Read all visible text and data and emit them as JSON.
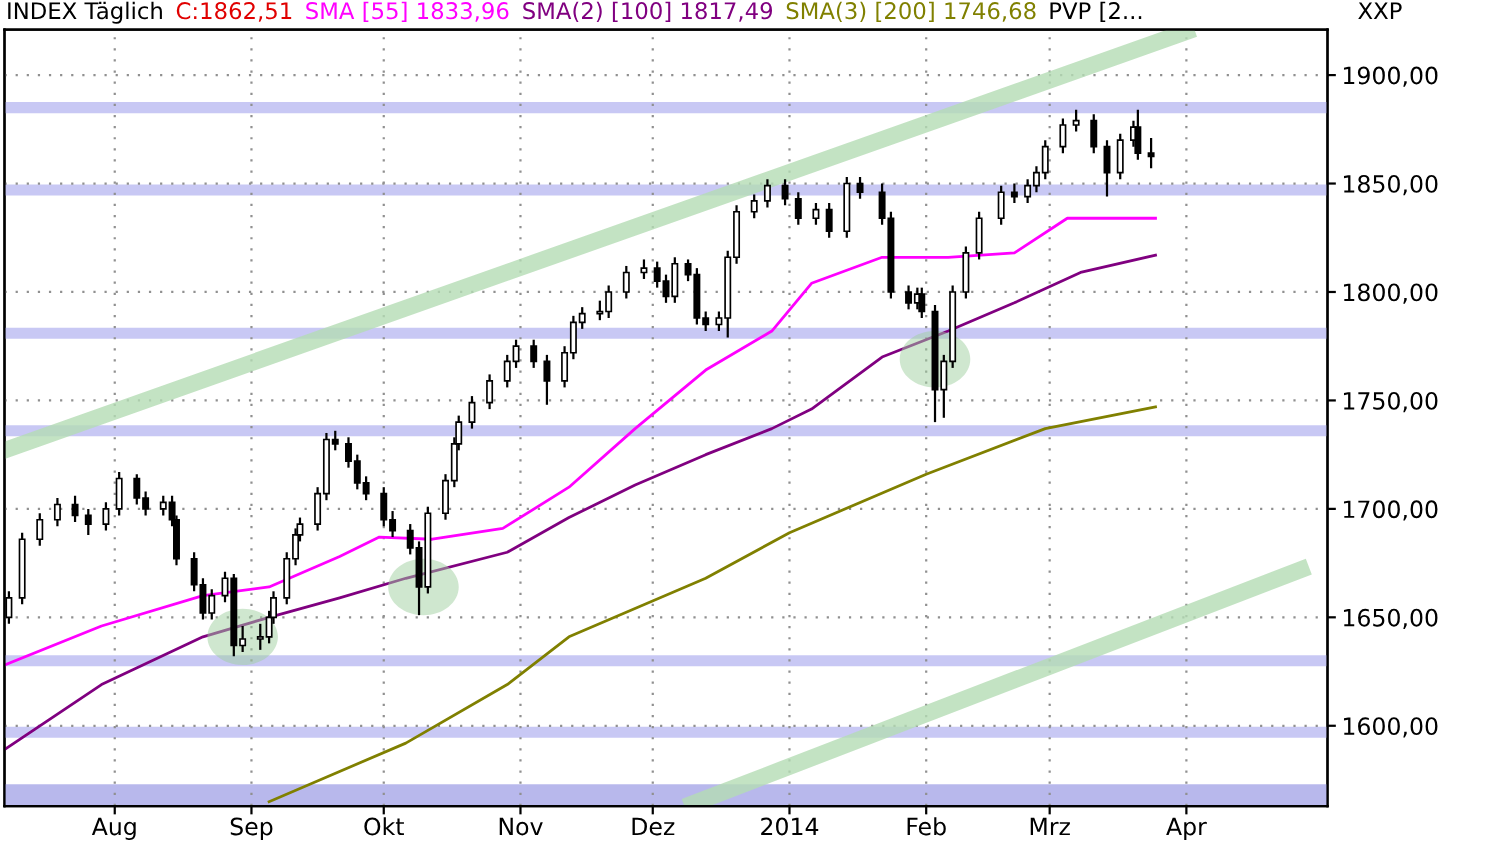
{
  "chart_data": {
    "type": "candlestick",
    "title": "INDEX Täglich",
    "annotations": [
      "C:1862,51",
      "PVP [2...",
      "XXP"
    ],
    "legend": "top",
    "grid": true,
    "xlim": [
      "2013-07-07",
      "2014-05-03"
    ],
    "xticks": [
      {
        "value": "2013-08-01",
        "label": "Aug"
      },
      {
        "value": "2013-09-01",
        "label": "Sep"
      },
      {
        "value": "2013-10-01",
        "label": "Okt"
      },
      {
        "value": "2013-11-01",
        "label": "Nov"
      },
      {
        "value": "2013-12-01",
        "label": "Dez"
      },
      {
        "value": "2014-01-01",
        "label": "2014"
      },
      {
        "value": "2014-02-01",
        "label": "Feb"
      },
      {
        "value": "2014-03-01",
        "label": "Mrz"
      },
      {
        "value": "2014-04-01",
        "label": "Apr"
      }
    ],
    "ylim": [
      1563,
      1921
    ],
    "yticks": [
      {
        "value": 1600,
        "label": "1600,00"
      },
      {
        "value": 1650,
        "label": "1650,00"
      },
      {
        "value": 1700,
        "label": "1700,00"
      },
      {
        "value": 1750,
        "label": "1750,00"
      },
      {
        "value": 1800,
        "label": "1800,00"
      },
      {
        "value": 1850,
        "label": "1850,00"
      },
      {
        "value": 1900,
        "label": "1900,00"
      }
    ],
    "ref_lines": [
      {
        "axis": "y",
        "value": 1885,
        "color": "#c8c8f4"
      },
      {
        "axis": "y",
        "value": 1847,
        "color": "#c8c8f4"
      },
      {
        "axis": "y",
        "value": 1781,
        "color": "#c8c8f4"
      },
      {
        "axis": "y",
        "value": 1736,
        "color": "#c8c8f4"
      },
      {
        "axis": "y",
        "value": 1630,
        "color": "#c8c8f4"
      },
      {
        "axis": "y",
        "value": 1597,
        "color": "#c8c8f4"
      }
    ],
    "bands": [
      {
        "axis": "y",
        "from": 1563,
        "to": 1573,
        "color": "#b8b8ec"
      }
    ],
    "series": [
      {
        "type": "line",
        "color": "#b4dcb4",
        "x": [
          "2013-07-07",
          "2014-04-01"
        ],
        "values": [
          1727,
          1920
        ]
      },
      {
        "type": "line",
        "color": "#b4dcb4",
        "x": [
          "2013-12-10",
          "2014-04-27"
        ],
        "values": [
          1564,
          1672
        ]
      },
      {
        "type": "line",
        "name": "SMA(3) [200] 1746,68",
        "color": "#808000",
        "x": [
          "2013-09-05",
          "2013-10-06",
          "2013-10-29",
          "2013-11-12",
          "2013-12-13",
          "2014-01-01",
          "2014-02-01",
          "2014-02-28",
          "2014-03-25"
        ],
        "values": [
          1565,
          1592,
          1619,
          1641,
          1668,
          1689,
          1716,
          1737,
          1747
        ]
      },
      {
        "type": "line",
        "name": "SMA(2) [100] 1817,49",
        "color": "#800080",
        "x": [
          "2013-07-07",
          "2013-07-29",
          "2013-08-21",
          "2013-09-05",
          "2013-09-21",
          "2013-10-06",
          "2013-10-29",
          "2013-11-12",
          "2013-11-27",
          "2013-12-13",
          "2013-12-28",
          "2014-01-06",
          "2014-01-22",
          "2014-02-06",
          "2014-02-21",
          "2014-03-08",
          "2014-03-25"
        ],
        "values": [
          1589,
          1619,
          1641,
          1650,
          1659,
          1668,
          1680,
          1696,
          1711,
          1725,
          1737,
          1746,
          1770,
          1782,
          1795,
          1809,
          1817
        ]
      },
      {
        "type": "line",
        "name": "SMA [55] 1833,96",
        "color": "#ff00ff",
        "x": [
          "2013-07-07",
          "2013-07-29",
          "2013-08-21",
          "2013-09-05",
          "2013-09-21",
          "2013-09-30",
          "2013-10-12",
          "2013-10-28",
          "2013-11-12",
          "2013-11-27",
          "2013-12-13",
          "2013-12-28",
          "2014-01-06",
          "2014-01-22",
          "2014-02-06",
          "2014-02-21",
          "2014-03-05",
          "2014-03-25"
        ],
        "values": [
          1628,
          1646,
          1660,
          1664,
          1678,
          1687,
          1686,
          1691,
          1710,
          1737,
          1764,
          1782,
          1804,
          1816,
          1816,
          1818,
          1834,
          1834
        ]
      },
      {
        "color": "#000000",
        "x": [
          "2013-07-08",
          "2013-07-11",
          "2013-07-15",
          "2013-07-19",
          "2013-07-23",
          "2013-07-26",
          "2013-07-30",
          "2013-08-02",
          "2013-08-06",
          "2013-08-08",
          "2013-08-12",
          "2013-08-14",
          "2013-08-15",
          "2013-08-19",
          "2013-08-21",
          "2013-08-23",
          "2013-08-26",
          "2013-08-28",
          "2013-08-30",
          "2013-09-03",
          "2013-09-05",
          "2013-09-06",
          "2013-09-09",
          "2013-09-11",
          "2013-09-12",
          "2013-09-16",
          "2013-09-18",
          "2013-09-20",
          "2013-09-23",
          "2013-09-25",
          "2013-09-27",
          "2013-10-01",
          "2013-10-03",
          "2013-10-07",
          "2013-10-09",
          "2013-10-11",
          "2013-10-15",
          "2013-10-17",
          "2013-10-18",
          "2013-10-21",
          "2013-10-25",
          "2013-10-29",
          "2013-10-31",
          "2013-11-04",
          "2013-11-07",
          "2013-11-11",
          "2013-11-13",
          "2013-11-15",
          "2013-11-19",
          "2013-11-21",
          "2013-11-25",
          "2013-11-29",
          "2013-12-02",
          "2013-12-04",
          "2013-12-06",
          "2013-12-09",
          "2013-12-11",
          "2013-12-13",
          "2013-12-16",
          "2013-12-18",
          "2013-12-20",
          "2013-12-24",
          "2013-12-27",
          "2013-12-31",
          "2014-01-03",
          "2014-01-07",
          "2014-01-10",
          "2014-01-14",
          "2014-01-17",
          "2014-01-22",
          "2014-01-24",
          "2014-01-28",
          "2014-01-30",
          "2014-01-31",
          "2014-02-03",
          "2014-02-05",
          "2014-02-07",
          "2014-02-10",
          "2014-02-13",
          "2014-02-18",
          "2014-02-21",
          "2014-02-24",
          "2014-02-26",
          "2014-02-28",
          "2014-03-04",
          "2014-03-07",
          "2014-03-11",
          "2014-03-14",
          "2014-03-17",
          "2014-03-20",
          "2014-03-21",
          "2014-03-24"
        ],
        "ohlc": [
          [
            1650,
            1662,
            1647,
            1659
          ],
          [
            1659,
            1689,
            1656,
            1686
          ],
          [
            1686,
            1698,
            1683,
            1695
          ],
          [
            1695,
            1705,
            1692,
            1702
          ],
          [
            1702,
            1706,
            1694,
            1697
          ],
          [
            1697,
            1700,
            1688,
            1693
          ],
          [
            1693,
            1703,
            1690,
            1700
          ],
          [
            1700,
            1717,
            1697,
            1714
          ],
          [
            1714,
            1716,
            1702,
            1705
          ],
          [
            1705,
            1708,
            1697,
            1700
          ],
          [
            1700,
            1706,
            1697,
            1703
          ],
          [
            1703,
            1706,
            1692,
            1695
          ],
          [
            1695,
            1697,
            1674,
            1677
          ],
          [
            1677,
            1680,
            1662,
            1665
          ],
          [
            1665,
            1668,
            1649,
            1652
          ],
          [
            1652,
            1663,
            1649,
            1660
          ],
          [
            1660,
            1671,
            1657,
            1668
          ],
          [
            1668,
            1670,
            1632,
            1637
          ],
          [
            1637,
            1646,
            1634,
            1640
          ],
          [
            1640,
            1647,
            1635,
            1641
          ],
          [
            1641,
            1653,
            1638,
            1650
          ],
          [
            1650,
            1662,
            1647,
            1659
          ],
          [
            1659,
            1680,
            1656,
            1677
          ],
          [
            1677,
            1691,
            1674,
            1688
          ],
          [
            1688,
            1696,
            1685,
            1693
          ],
          [
            1693,
            1710,
            1690,
            1707
          ],
          [
            1707,
            1735,
            1704,
            1732
          ],
          [
            1732,
            1736,
            1727,
            1730
          ],
          [
            1730,
            1733,
            1719,
            1722
          ],
          [
            1722,
            1725,
            1709,
            1712
          ],
          [
            1712,
            1715,
            1704,
            1707
          ],
          [
            1707,
            1710,
            1692,
            1695
          ],
          [
            1695,
            1699,
            1687,
            1690
          ],
          [
            1690,
            1693,
            1679,
            1682
          ],
          [
            1682,
            1685,
            1651,
            1664
          ],
          [
            1664,
            1701,
            1661,
            1698
          ],
          [
            1698,
            1716,
            1695,
            1713
          ],
          [
            1713,
            1733,
            1710,
            1730
          ],
          [
            1730,
            1743,
            1727,
            1740
          ],
          [
            1740,
            1752,
            1737,
            1749
          ],
          [
            1749,
            1762,
            1746,
            1759
          ],
          [
            1759,
            1771,
            1756,
            1768
          ],
          [
            1768,
            1778,
            1765,
            1775
          ],
          [
            1775,
            1778,
            1765,
            1768
          ],
          [
            1768,
            1771,
            1748,
            1759
          ],
          [
            1759,
            1775,
            1756,
            1772
          ],
          [
            1772,
            1789,
            1769,
            1786
          ],
          [
            1786,
            1793,
            1783,
            1790
          ],
          [
            1790,
            1796,
            1787,
            1791
          ],
          [
            1791,
            1803,
            1788,
            1800
          ],
          [
            1800,
            1812,
            1797,
            1809
          ],
          [
            1809,
            1815,
            1806,
            1811
          ],
          [
            1811,
            1814,
            1802,
            1805
          ],
          [
            1805,
            1808,
            1795,
            1798
          ],
          [
            1798,
            1816,
            1795,
            1813
          ],
          [
            1813,
            1815,
            1805,
            1808
          ],
          [
            1808,
            1811,
            1785,
            1788
          ],
          [
            1788,
            1791,
            1782,
            1785
          ],
          [
            1785,
            1791,
            1782,
            1788
          ],
          [
            1788,
            1819,
            1779,
            1816
          ],
          [
            1816,
            1840,
            1813,
            1837
          ],
          [
            1837,
            1845,
            1834,
            1842
          ],
          [
            1842,
            1852,
            1839,
            1849
          ],
          [
            1849,
            1852,
            1840,
            1843
          ],
          [
            1843,
            1846,
            1831,
            1834
          ],
          [
            1834,
            1841,
            1831,
            1838
          ],
          [
            1838,
            1841,
            1825,
            1828
          ],
          [
            1828,
            1853,
            1825,
            1850
          ],
          [
            1850,
            1853,
            1843,
            1846
          ],
          [
            1846,
            1850,
            1831,
            1834
          ],
          [
            1834,
            1837,
            1797,
            1800
          ],
          [
            1800,
            1803,
            1792,
            1795
          ],
          [
            1795,
            1802,
            1792,
            1799
          ],
          [
            1799,
            1802,
            1788,
            1791
          ],
          [
            1791,
            1794,
            1740,
            1755
          ],
          [
            1755,
            1771,
            1742,
            1768
          ],
          [
            1768,
            1803,
            1765,
            1800
          ],
          [
            1800,
            1821,
            1797,
            1818
          ],
          [
            1818,
            1837,
            1815,
            1834
          ],
          [
            1834,
            1849,
            1831,
            1846
          ],
          [
            1846,
            1850,
            1841,
            1844
          ],
          [
            1844,
            1852,
            1841,
            1849
          ],
          [
            1849,
            1858,
            1846,
            1855
          ],
          [
            1855,
            1870,
            1852,
            1867
          ],
          [
            1867,
            1880,
            1864,
            1877
          ],
          [
            1877,
            1884,
            1874,
            1879
          ],
          [
            1879,
            1882,
            1864,
            1867
          ],
          [
            1867,
            1870,
            1844,
            1855
          ],
          [
            1855,
            1873,
            1852,
            1870
          ],
          [
            1870,
            1879,
            1867,
            1876
          ],
          [
            1876,
            1884,
            1861,
            1864
          ],
          [
            1864,
            1871,
            1857,
            1862.5
          ]
        ]
      }
    ]
  }
}
